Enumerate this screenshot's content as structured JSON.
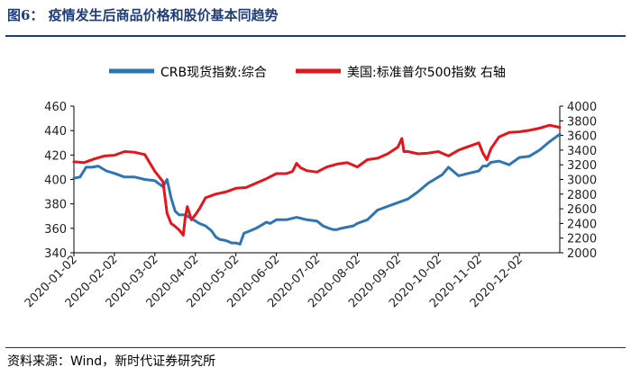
{
  "header": {
    "title": "图6：  疫情发生后商品价格和股价基本同趋势"
  },
  "footer": {
    "source": "资料来源：Wind，新时代证券研究所"
  },
  "chart_data": {
    "type": "line",
    "x_tick_labels": [
      "2020-01-02",
      "2020-02-02",
      "2020-03-02",
      "2020-04-02",
      "2020-05-02",
      "2020-06-02",
      "2020-07-02",
      "2020-08-02",
      "2020-09-02",
      "2020-10-02",
      "2020-11-02",
      "2020-12-02"
    ],
    "x_range": [
      0,
      12
    ],
    "y_left": {
      "min": 340,
      "max": 460,
      "ticks": [
        340,
        360,
        380,
        400,
        420,
        440,
        460
      ]
    },
    "y_right": {
      "min": 2000,
      "max": 4000,
      "ticks": [
        2000,
        2200,
        2400,
        2600,
        2800,
        3000,
        3200,
        3400,
        3600,
        3800,
        4000
      ]
    },
    "grid": false,
    "legend_position": "top",
    "series": [
      {
        "name": "CRB现货指数:综合",
        "axis": "left",
        "color": "#2e75b6",
        "x": [
          0,
          0.15,
          0.3,
          0.45,
          0.6,
          0.8,
          1.0,
          1.25,
          1.5,
          1.75,
          2.0,
          2.2,
          2.3,
          2.4,
          2.5,
          2.6,
          2.75,
          2.9,
          3.0,
          3.1,
          3.25,
          3.4,
          3.5,
          3.6,
          3.75,
          3.9,
          4.0,
          4.1,
          4.2,
          4.35,
          4.5,
          4.65,
          4.75,
          4.85,
          5.0,
          5.25,
          5.5,
          5.75,
          6.0,
          6.15,
          6.3,
          6.4,
          6.5,
          6.6,
          6.75,
          6.9,
          7.0,
          7.25,
          7.5,
          7.75,
          8.0,
          8.25,
          8.5,
          8.75,
          9.0,
          9.1,
          9.25,
          9.5,
          9.75,
          10.0,
          10.1,
          10.2,
          10.3,
          10.5,
          10.75,
          11.0,
          11.25,
          11.5,
          11.75,
          12.0
        ],
        "values": [
          401,
          402,
          410,
          410,
          411,
          407,
          405,
          402,
          402,
          400,
          399,
          394,
          400,
          385,
          374,
          371,
          371,
          368,
          366,
          364,
          362,
          358,
          353,
          351,
          350,
          348,
          348,
          347,
          356,
          358,
          360,
          363,
          365,
          364,
          367,
          367,
          369,
          367,
          366,
          362,
          360,
          359,
          359,
          360,
          361,
          362,
          364,
          367,
          375,
          378,
          381,
          384,
          390,
          397,
          402,
          404,
          410,
          403,
          405,
          407,
          411,
          411,
          414,
          415,
          412,
          418,
          419,
          424,
          431,
          437
        ]
      },
      {
        "name": "美国:标准普尔500指数 右轴",
        "axis": "right",
        "color": "#e3161c",
        "x": [
          0,
          0.25,
          0.5,
          0.75,
          1.0,
          1.25,
          1.5,
          1.75,
          2.0,
          2.2,
          2.3,
          2.4,
          2.5,
          2.6,
          2.7,
          2.75,
          2.8,
          2.9,
          3.0,
          3.1,
          3.25,
          3.5,
          3.75,
          4.0,
          4.25,
          4.5,
          4.75,
          5.0,
          5.25,
          5.4,
          5.5,
          5.6,
          5.75,
          6.0,
          6.25,
          6.5,
          6.75,
          7.0,
          7.25,
          7.5,
          7.75,
          8.0,
          8.1,
          8.15,
          8.25,
          8.5,
          8.75,
          9.0,
          9.25,
          9.5,
          9.75,
          10.0,
          10.1,
          10.2,
          10.3,
          10.5,
          10.75,
          11.0,
          11.25,
          11.5,
          11.75,
          12.0
        ],
        "values": [
          3240,
          3230,
          3280,
          3320,
          3330,
          3380,
          3370,
          3340,
          3110,
          2970,
          2540,
          2400,
          2360,
          2310,
          2240,
          2480,
          2630,
          2450,
          2520,
          2600,
          2750,
          2800,
          2830,
          2880,
          2890,
          2950,
          3010,
          3080,
          3080,
          3110,
          3220,
          3160,
          3120,
          3100,
          3170,
          3210,
          3230,
          3170,
          3270,
          3290,
          3350,
          3440,
          3560,
          3380,
          3380,
          3350,
          3360,
          3380,
          3320,
          3400,
          3450,
          3500,
          3360,
          3270,
          3420,
          3580,
          3640,
          3650,
          3670,
          3700,
          3740,
          3710
        ]
      }
    ]
  }
}
